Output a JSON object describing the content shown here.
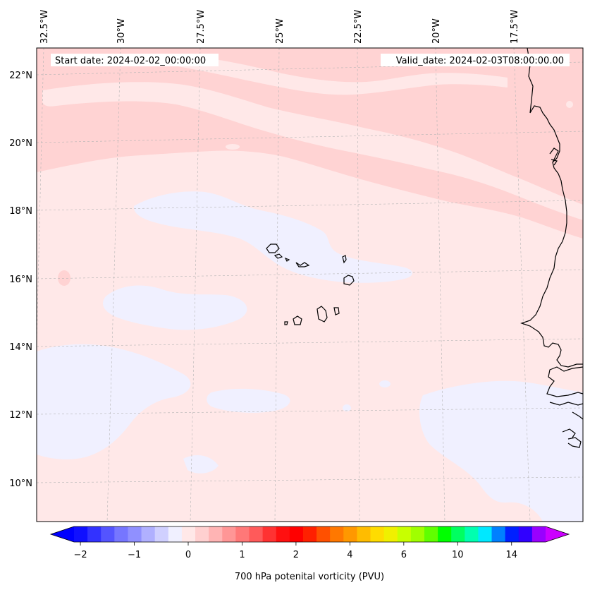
{
  "map": {
    "start_date": "Start date: 2024-02-02_00:00:00",
    "valid_date": "Valid_date: 2024-02-03T08:00:00.00",
    "lon_labels": [
      "32.5°W",
      "30°W",
      "27.5°W",
      "25°W",
      "22.5°W",
      "20°W",
      "17.5°W"
    ],
    "lat_labels": [
      "22°N",
      "20°N",
      "18°N",
      "16°N",
      "14°N",
      "12°N",
      "10°N"
    ],
    "colors": {
      "background_field": "#ffe8e8",
      "pink_band": "#ffd3d3",
      "blue_patch": "#f0f0ff",
      "coastline": "#000000",
      "gridline": "#b4b4b4"
    }
  },
  "colorbar": {
    "label": "700 hPa potenital vorticity (PVU)",
    "tick_labels": [
      "−2",
      "−1",
      "0",
      "1",
      "2",
      "4",
      "6",
      "10",
      "14"
    ],
    "tick_bin_index": [
      0,
      4,
      8,
      12,
      16,
      20,
      24,
      28,
      32
    ],
    "under_color": "#0000ff",
    "over_color": "#cc00ff",
    "colors": [
      "#1010ff",
      "#3232ff",
      "#5454ff",
      "#7676ff",
      "#9090ff",
      "#b0b0ff",
      "#d0d0ff",
      "#f0f0ff",
      "#ffe8e8",
      "#ffd0d0",
      "#ffb4b4",
      "#ff9696",
      "#ff7878",
      "#ff5a5a",
      "#ff3232",
      "#ff1010",
      "#ff0000",
      "#ff2000",
      "#ff5000",
      "#ff7800",
      "#ff9800",
      "#ffbc00",
      "#ffdc00",
      "#f0f000",
      "#c8ff00",
      "#a0ff00",
      "#60ff00",
      "#00ff00",
      "#00ff60",
      "#00ffb0",
      "#00e8ff",
      "#0080ff",
      "#0020ff",
      "#3000ff",
      "#9900ff"
    ]
  }
}
